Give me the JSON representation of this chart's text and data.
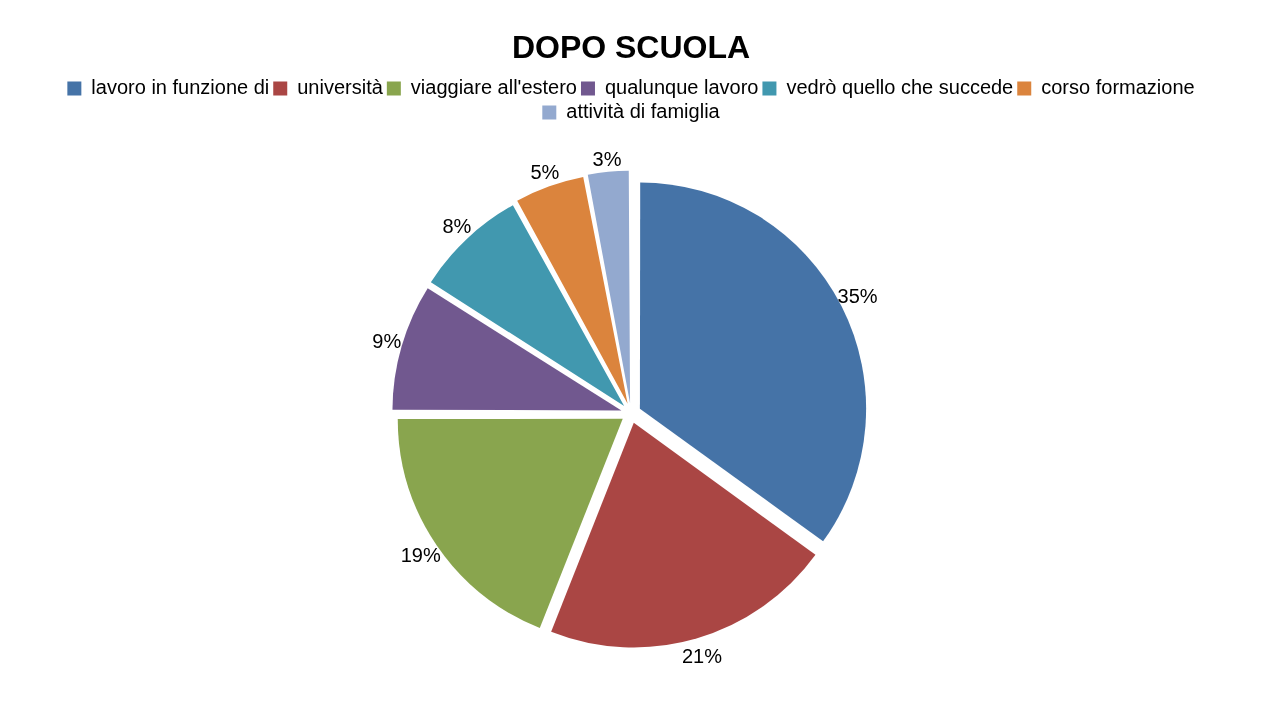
{
  "chart_data": {
    "type": "pie",
    "title": "DOPO SCUOLA",
    "categories": [
      "lavoro in funzione di",
      "università",
      "viaggiare all'estero",
      "qualunque lavoro",
      "vedrò quello che succede",
      "corso formazione",
      "attività di famiglia"
    ],
    "values": [
      35,
      21,
      19,
      9,
      8,
      5,
      3
    ],
    "colors": [
      "#4573a7",
      "#aa4644",
      "#89a54e",
      "#71588f",
      "#4198af",
      "#db843d",
      "#93a9cf"
    ],
    "value_labels": [
      "35%",
      "21%",
      "19%",
      "9%",
      "8%",
      "5%",
      "3%"
    ],
    "legend": "top"
  }
}
